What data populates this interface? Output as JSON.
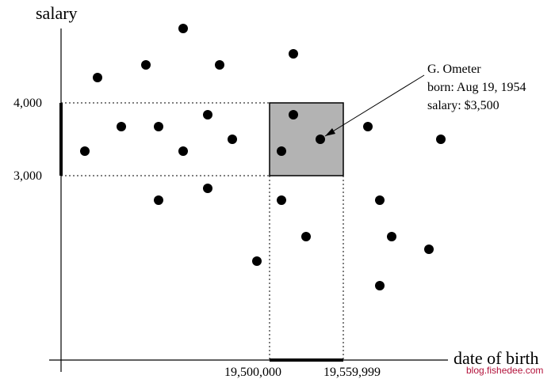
{
  "chart_data": {
    "type": "scatter",
    "ylabel": "salary",
    "xlabel": "date of birth",
    "y_ticks": [
      "4,000",
      "3,000"
    ],
    "x_ticks": [
      "19,500,000",
      "19,559,999"
    ],
    "query_range": {
      "x": [
        19500000,
        19559999
      ],
      "y": [
        3000,
        4000
      ]
    },
    "annotation": {
      "lines": [
        "G. Ometer",
        "born: Aug 19, 1954",
        "salary: $3,500"
      ]
    }
  },
  "watermark": "blog.fishedee.com",
  "colors": {
    "points": "#000000",
    "query_box": "#b3b3b3",
    "watermark": "#b3123b"
  }
}
